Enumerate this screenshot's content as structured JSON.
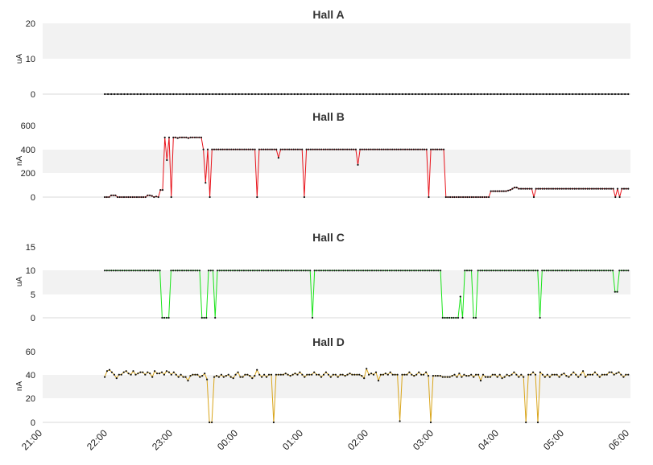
{
  "chart_data": [
    {
      "type": "line",
      "title": "Hall A",
      "ylabel": "uA",
      "ylim": [
        0,
        20
      ],
      "yticks": [
        "0",
        "10",
        "20"
      ],
      "color": "#000000",
      "x_start": "21:57",
      "x_end": "05:58",
      "step_min": 3,
      "series": [
        {
          "values": [
            0
          ]
        }
      ],
      "fill_value": 0
    },
    {
      "type": "line",
      "title": "Hall B",
      "ylabel": "nA",
      "ylim": [
        0,
        600
      ],
      "yticks": [
        "0",
        "200",
        "400",
        "600"
      ],
      "color": "#e8131b",
      "x_start": "21:57",
      "x_end": "05:58",
      "series": [
        {
          "values": [
            0,
            0,
            0,
            15,
            15,
            15,
            0,
            0,
            0,
            0,
            0,
            0,
            0,
            0,
            0,
            0,
            0,
            0,
            0,
            0,
            15,
            15,
            10,
            0,
            5,
            0,
            60,
            60,
            500,
            310,
            500,
            0,
            500,
            500,
            495,
            500,
            500,
            500,
            500,
            495,
            500,
            500,
            500,
            500,
            500,
            500,
            400,
            120,
            400,
            0,
            400,
            400,
            400,
            400,
            400,
            400,
            400,
            400,
            400,
            400,
            400,
            400,
            400,
            400,
            400,
            400,
            400,
            400,
            400,
            400,
            400,
            0,
            400,
            400,
            400,
            400,
            400,
            400,
            400,
            400,
            400,
            330,
            400,
            400,
            400,
            400,
            400,
            400,
            400,
            400,
            400,
            400,
            400,
            0,
            400,
            400,
            400,
            400,
            400,
            400,
            400,
            400,
            400,
            400,
            400,
            400,
            400,
            400,
            400,
            400,
            400,
            400,
            400,
            400,
            400,
            400,
            400,
            400,
            270,
            400,
            400,
            400,
            400,
            400,
            400,
            400,
            400,
            400,
            400,
            400,
            400,
            400,
            400,
            400,
            400,
            400,
            400,
            400,
            400,
            400,
            400,
            400,
            400,
            400,
            400,
            400,
            400,
            400,
            400,
            400,
            400,
            0,
            400,
            400,
            400,
            400,
            400,
            400,
            400,
            0,
            0,
            0,
            0,
            0,
            0,
            0,
            0,
            0,
            0,
            0,
            0,
            0,
            0,
            0,
            0,
            0,
            0,
            0,
            0,
            0,
            50,
            50,
            50,
            50,
            50,
            50,
            50,
            50,
            55,
            60,
            70,
            80,
            80,
            70,
            70,
            70,
            70,
            70,
            70,
            70,
            0,
            70,
            70,
            70,
            70,
            70,
            70,
            70,
            70,
            70,
            70,
            70,
            70,
            70,
            70,
            70,
            70,
            70,
            70,
            70,
            70,
            70,
            70,
            70,
            70,
            70,
            70,
            70,
            70,
            70,
            70,
            70,
            70,
            70,
            70,
            70,
            70,
            70,
            0,
            70,
            0,
            70,
            70,
            70,
            70
          ]
        }
      ]
    },
    {
      "type": "line",
      "title": "Hall C",
      "ylabel": "uA",
      "ylim": [
        0,
        15
      ],
      "yticks": [
        "0",
        "5",
        "10",
        "15"
      ],
      "color": "#19e319",
      "x_start": "21:57",
      "x_end": "05:58",
      "series": [
        {
          "values": [
            10,
            10,
            10,
            10,
            10,
            10,
            10,
            10,
            10,
            10,
            10,
            10,
            10,
            10,
            10,
            10,
            10,
            10,
            10,
            10,
            10,
            10,
            10,
            10,
            10,
            10,
            0,
            0,
            0,
            0,
            10,
            10,
            10,
            10,
            10,
            10,
            10,
            10,
            10,
            10,
            10,
            10,
            10,
            10,
            0,
            0,
            0,
            10,
            10,
            10,
            0,
            10,
            10,
            10,
            10,
            10,
            10,
            10,
            10,
            10,
            10,
            10,
            10,
            10,
            10,
            10,
            10,
            10,
            10,
            10,
            10,
            10,
            10,
            10,
            10,
            10,
            10,
            10,
            10,
            10,
            10,
            10,
            10,
            10,
            10,
            10,
            10,
            10,
            10,
            10,
            10,
            10,
            10,
            10,
            0,
            10,
            10,
            10,
            10,
            10,
            10,
            10,
            10,
            10,
            10,
            10,
            10,
            10,
            10,
            10,
            10,
            10,
            10,
            10,
            10,
            10,
            10,
            10,
            10,
            10,
            10,
            10,
            10,
            10,
            10,
            10,
            10,
            10,
            10,
            10,
            10,
            10,
            10,
            10,
            10,
            10,
            10,
            10,
            10,
            10,
            10,
            10,
            10,
            10,
            10,
            10,
            10,
            10,
            10,
            10,
            10,
            10,
            10,
            0,
            0,
            0,
            0,
            0,
            0,
            0,
            0,
            4.5,
            0,
            10,
            10,
            10,
            10,
            0,
            0,
            10,
            10,
            10,
            10,
            10,
            10,
            10,
            10,
            10,
            10,
            10,
            10,
            10,
            10,
            10,
            10,
            10,
            10,
            10,
            10,
            10,
            10,
            10,
            10,
            10,
            10,
            10,
            10,
            0,
            10,
            10,
            10,
            10,
            10,
            10,
            10,
            10,
            10,
            10,
            10,
            10,
            10,
            10,
            10,
            10,
            10,
            10,
            10,
            10,
            10,
            10,
            10,
            10,
            10,
            10,
            10,
            10,
            10,
            10,
            10,
            10,
            10,
            5.5,
            5.5,
            10,
            10,
            10,
            10,
            10
          ]
        }
      ]
    },
    {
      "type": "line",
      "title": "Hall D",
      "ylabel": "nA",
      "ylim": [
        0,
        60
      ],
      "yticks": [
        "0",
        "20",
        "40",
        "60"
      ],
      "color": "#d9a51b",
      "x_start": "21:57",
      "x_end": "05:58",
      "series": [
        {
          "values": [
            38,
            43,
            44,
            42,
            40,
            37,
            40,
            40,
            42,
            43,
            41,
            40,
            43,
            40,
            41,
            42,
            42,
            40,
            42,
            41,
            38,
            43,
            41,
            41,
            42,
            40,
            43,
            42,
            40,
            42,
            40,
            38,
            40,
            38,
            38,
            35,
            39,
            40,
            40,
            40,
            38,
            39,
            41,
            36,
            0,
            0,
            38,
            39,
            38,
            40,
            38,
            39,
            40,
            38,
            37,
            40,
            42,
            38,
            38,
            40,
            40,
            39,
            37,
            39,
            44,
            40,
            38,
            40,
            38,
            40,
            40,
            0,
            40,
            40,
            40,
            40,
            41,
            40,
            39,
            40,
            41,
            40,
            42,
            40,
            38,
            40,
            40,
            40,
            42,
            40,
            40,
            38,
            40,
            42,
            40,
            38,
            40,
            40,
            38,
            40,
            40,
            39,
            40,
            41,
            40,
            40,
            40,
            40,
            39,
            37,
            45,
            40,
            41,
            40,
            42,
            35,
            40,
            40,
            41,
            40,
            42,
            40,
            40,
            40,
            1,
            40,
            40,
            40,
            42,
            40,
            39,
            40,
            42,
            40,
            40,
            42,
            39,
            0,
            39,
            39,
            39,
            39,
            38,
            38,
            38,
            38,
            39,
            40,
            38,
            41,
            38,
            40,
            39,
            39,
            40,
            38,
            40,
            40,
            35,
            40,
            38,
            38,
            38,
            40,
            40,
            38,
            40,
            37,
            38,
            40,
            39,
            40,
            42,
            40,
            38,
            40,
            38,
            0,
            40,
            40,
            42,
            40,
            0,
            42,
            40,
            38,
            40,
            38,
            40,
            40,
            40,
            38,
            40,
            41,
            39,
            38,
            40,
            42,
            40,
            38,
            40,
            43,
            38,
            40,
            40,
            40,
            42,
            40,
            38,
            40,
            40,
            40,
            42,
            42,
            40,
            41,
            42,
            40,
            38,
            40,
            40
          ]
        }
      ]
    }
  ],
  "x_axis": {
    "ticks": [
      "21:00",
      "22:00",
      "23:00",
      "00:00",
      "01:00",
      "02:00",
      "03:00",
      "04:00",
      "05:00",
      "06:00"
    ]
  },
  "colors": {
    "band": "#f2f2f2",
    "marker": "#111111"
  }
}
